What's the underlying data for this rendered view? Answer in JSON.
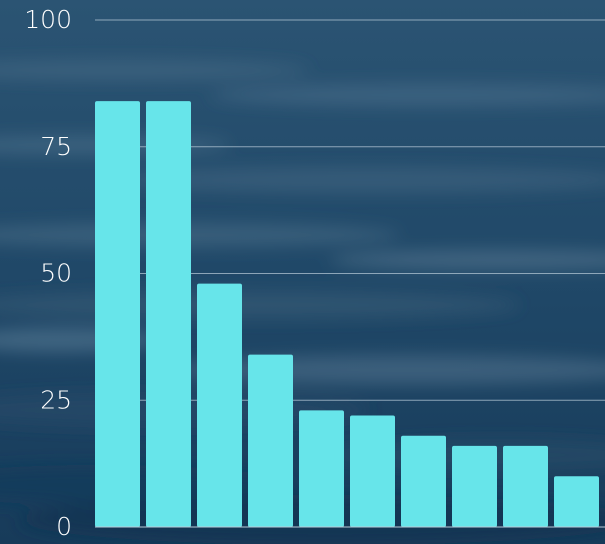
{
  "chart_data": {
    "type": "bar",
    "categories": [
      "",
      "",
      "",
      "",
      "",
      "",
      "",
      "",
      "",
      ""
    ],
    "values": [
      84,
      84,
      48,
      34,
      23,
      22,
      18,
      16,
      16,
      10
    ],
    "ylim": [
      0,
      100
    ],
    "yticks": [
      "0",
      "25",
      "50",
      "75",
      "100"
    ],
    "grid": true,
    "title": "",
    "xlabel": "",
    "ylabel": ""
  },
  "colors": {
    "bar": "#67e5ea",
    "gridline": "#b7cad8",
    "tick_text": "#ffffff",
    "background_top": "#2b5473",
    "background_mid": "#1f4767",
    "background_bottom": "#173b5a"
  }
}
